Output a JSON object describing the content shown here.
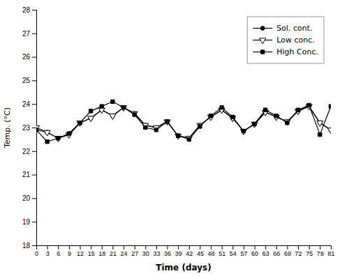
{
  "chart_data": {
    "type": "line",
    "xlabel": "Time (days)",
    "ylabel": "Temp. (°C)",
    "x": [
      0,
      3,
      6,
      9,
      12,
      15,
      18,
      21,
      24,
      27,
      30,
      33,
      36,
      39,
      42,
      45,
      48,
      51,
      54,
      57,
      60,
      63,
      66,
      69,
      72,
      75,
      78,
      81
    ],
    "xlim": [
      0,
      81
    ],
    "ylim": [
      18,
      28
    ],
    "xticks": [
      0,
      3,
      6,
      9,
      12,
      15,
      18,
      21,
      24,
      27,
      30,
      33,
      36,
      39,
      42,
      45,
      48,
      51,
      54,
      57,
      60,
      63,
      66,
      69,
      72,
      75,
      78,
      81
    ],
    "yticks": [
      18,
      19,
      20,
      21,
      22,
      23,
      24,
      25,
      26,
      27,
      28
    ],
    "grid": false,
    "legend": "upper right",
    "series": [
      {
        "name": "Sol. cont.",
        "color": "black",
        "marker": "circle",
        "values": [
          22.9,
          22.8,
          22.55,
          22.7,
          23.2,
          23.4,
          23.75,
          23.5,
          23.85,
          23.6,
          23.1,
          23.0,
          23.25,
          22.65,
          22.55,
          23.1,
          23.45,
          23.75,
          23.4,
          22.85,
          23.15,
          23.65,
          23.45,
          23.25,
          23.7,
          23.9,
          23.2,
          22.9
        ]
      },
      {
        "name": "Low conc.",
        "color": "black",
        "marker": "triangle-down",
        "values": [
          23.0,
          22.8,
          22.55,
          22.7,
          23.2,
          23.4,
          23.75,
          23.5,
          23.85,
          23.6,
          23.1,
          23.0,
          23.25,
          22.65,
          22.55,
          23.1,
          23.45,
          23.75,
          23.4,
          22.85,
          23.15,
          23.65,
          23.45,
          23.25,
          23.7,
          23.9,
          23.2,
          22.9
        ]
      },
      {
        "name": "High Conc.",
        "color": "black",
        "marker": "square",
        "values": [
          22.9,
          22.4,
          22.55,
          22.75,
          23.2,
          23.7,
          23.9,
          24.1,
          23.85,
          23.55,
          23.0,
          22.9,
          23.25,
          22.65,
          22.5,
          23.05,
          23.5,
          23.85,
          23.45,
          22.85,
          23.15,
          23.75,
          23.5,
          23.2,
          23.75,
          23.95,
          22.7,
          23.9
        ]
      }
    ]
  }
}
